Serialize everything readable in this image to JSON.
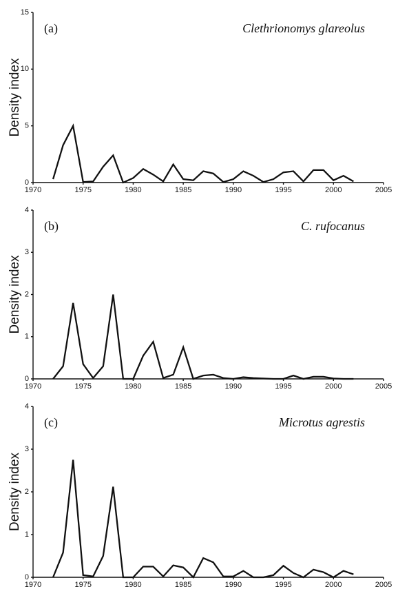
{
  "chart_data": [
    {
      "type": "line",
      "panel_label": "(a)",
      "title": "Clethrionomys glareolus",
      "y_label": "Density index",
      "x": [
        1972,
        1973,
        1974,
        1975,
        1976,
        1977,
        1978,
        1979,
        1980,
        1981,
        1982,
        1983,
        1984,
        1985,
        1986,
        1987,
        1988,
        1989,
        1990,
        1991,
        1992,
        1993,
        1994,
        1995,
        1996,
        1997,
        1998,
        1999,
        2000,
        2001,
        2002
      ],
      "values": [
        0.3,
        3.3,
        5.0,
        0.05,
        0.1,
        1.4,
        2.4,
        0.0,
        0.4,
        1.2,
        0.7,
        0.1,
        1.6,
        0.3,
        0.2,
        1.0,
        0.8,
        0.05,
        0.3,
        1.0,
        0.6,
        0.05,
        0.3,
        0.9,
        1.0,
        0.1,
        1.1,
        1.1,
        0.2,
        0.6,
        0.1
      ],
      "color": "#111111",
      "xlim": [
        1970,
        2005
      ],
      "xticks": [
        1970,
        1975,
        1980,
        1985,
        1990,
        1995,
        2000,
        2005
      ],
      "ylim": [
        0,
        15
      ],
      "yticks": [
        0,
        5,
        10,
        15
      ]
    },
    {
      "type": "line",
      "panel_label": "(b)",
      "title": "C. rufocanus",
      "y_label": "Density index",
      "x": [
        1972,
        1973,
        1974,
        1975,
        1976,
        1977,
        1978,
        1979,
        1980,
        1981,
        1982,
        1983,
        1984,
        1985,
        1986,
        1987,
        1988,
        1989,
        1990,
        1991,
        1992,
        1993,
        1994,
        1995,
        1996,
        1997,
        1998,
        1999,
        2000,
        2001,
        2002
      ],
      "values": [
        0,
        0.3,
        1.8,
        0.35,
        0.02,
        0.3,
        2.0,
        0,
        0,
        0.55,
        0.88,
        0.02,
        0.1,
        0.75,
        0,
        0.08,
        0.1,
        0.02,
        0,
        0.04,
        0.02,
        0.01,
        0,
        0,
        0.08,
        0,
        0.05,
        0.05,
        0.01,
        0,
        0
      ],
      "color": "#111111",
      "xlim": [
        1970,
        2005
      ],
      "xticks": [
        1970,
        1975,
        1980,
        1985,
        1990,
        1995,
        2000,
        2005
      ],
      "ylim": [
        0,
        4
      ],
      "yticks": [
        0,
        1,
        2,
        3,
        4
      ]
    },
    {
      "type": "line",
      "panel_label": "(c)",
      "title": "Microtus agrestis",
      "y_label": "Density index",
      "x": [
        1972,
        1973,
        1974,
        1975,
        1976,
        1977,
        1978,
        1979,
        1980,
        1981,
        1982,
        1983,
        1984,
        1985,
        1986,
        1987,
        1988,
        1989,
        1990,
        1991,
        1992,
        1993,
        1994,
        1995,
        1996,
        1997,
        1998,
        1999,
        2000,
        2001,
        2002
      ],
      "values": [
        0,
        0.58,
        2.75,
        0.05,
        0.02,
        0.5,
        2.12,
        0,
        0,
        0.25,
        0.25,
        0.02,
        0.28,
        0.23,
        0,
        0.45,
        0.35,
        0.02,
        0.02,
        0.15,
        0,
        0,
        0.05,
        0.27,
        0.1,
        0,
        0.18,
        0.12,
        0,
        0.15,
        0.07
      ],
      "color": "#111111",
      "xlim": [
        1970,
        2005
      ],
      "xticks": [
        1970,
        1975,
        1980,
        1985,
        1990,
        1995,
        2000,
        2005
      ],
      "ylim": [
        0,
        4
      ],
      "yticks": [
        0,
        1,
        2,
        3,
        4
      ]
    }
  ]
}
